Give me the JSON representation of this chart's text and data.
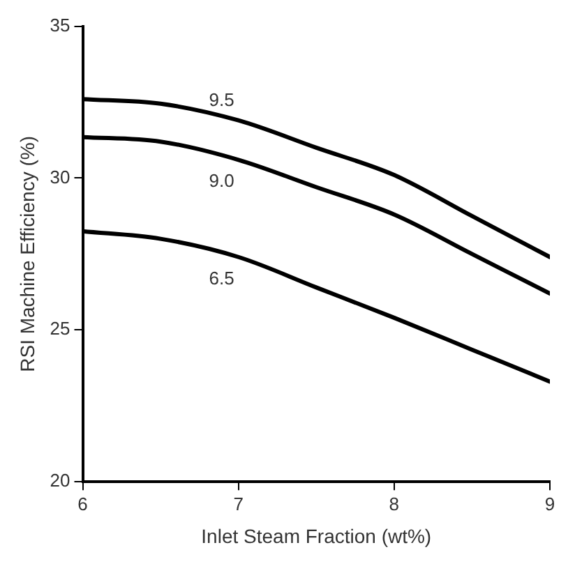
{
  "chart_data": {
    "type": "line",
    "xlabel": "Inlet Steam Fraction (wt%)",
    "ylabel": "RSI Machine Efficiency (%)",
    "x": [
      6,
      6.5,
      7,
      7.5,
      8,
      8.5,
      9
    ],
    "series": [
      {
        "name": "9.5",
        "color": "#000000",
        "values": [
          32.6,
          32.45,
          31.9,
          31.0,
          30.1,
          28.75,
          27.4
        ]
      },
      {
        "name": "9.0",
        "color": "#000000",
        "values": [
          31.35,
          31.2,
          30.6,
          29.7,
          28.8,
          27.5,
          26.2
        ]
      },
      {
        "name": "6.5",
        "color": "#000000",
        "values": [
          28.25,
          28.0,
          27.4,
          26.4,
          25.4,
          24.35,
          23.3
        ]
      }
    ],
    "xlim": [
      6,
      9
    ],
    "xticks": [
      6,
      7,
      8,
      9
    ],
    "ylim": [
      20,
      35
    ],
    "yticks": [
      20,
      25,
      30,
      35
    ],
    "grid": false,
    "legend": false,
    "marker": "none",
    "line_style": "solid"
  }
}
